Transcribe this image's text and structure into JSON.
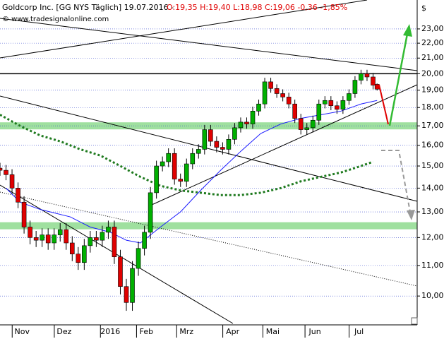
{
  "chart_data": {
    "type": "candlestick",
    "title": "Goldcorp Inc. [GG NYS  Täglich] 19.07.2016 -",
    "subtitle": "O:19,35 H:19,40 L:18,98 C:19,06 -0,36 -1,85%",
    "watermark": "© www.tradesignalonline.com",
    "y_axis_label": "$",
    "log_scale": true,
    "grid": true,
    "xlim": [
      0,
      208
    ],
    "ylim": [
      9.18,
      25.17
    ],
    "xticks": [
      {
        "value": 11,
        "label": "Nov"
      },
      {
        "value": 32,
        "label": "Dez"
      },
      {
        "value": 55,
        "label": "2016"
      },
      {
        "value": 73,
        "label": "Feb"
      },
      {
        "value": 93,
        "label": "Mrz"
      },
      {
        "value": 116,
        "label": "Apr"
      },
      {
        "value": 136,
        "label": "Mai"
      },
      {
        "value": 157,
        "label": "Jun"
      },
      {
        "value": 179,
        "label": "Jul"
      }
    ],
    "yticks": [
      {
        "value": 10,
        "label": "10,00"
      },
      {
        "value": 11,
        "label": "11,00"
      },
      {
        "value": 12,
        "label": "12,00"
      },
      {
        "value": 13,
        "label": "13,00"
      },
      {
        "value": 14,
        "label": "14,00"
      },
      {
        "value": 15,
        "label": "15,00"
      },
      {
        "value": 16,
        "label": "16,00"
      },
      {
        "value": 17,
        "label": "17,00"
      },
      {
        "value": 18,
        "label": "18,00"
      },
      {
        "value": 19,
        "label": "19,00"
      },
      {
        "value": 20,
        "label": "20,00"
      },
      {
        "value": 21,
        "label": "21,00"
      },
      {
        "value": 22,
        "label": "22,00"
      },
      {
        "value": 23,
        "label": "23,00"
      }
    ],
    "up_color": "#00b000",
    "down_color": "#e00000",
    "x": [
      0,
      3,
      6,
      9,
      12,
      15,
      18,
      21,
      24,
      27,
      30,
      33,
      36,
      39,
      42,
      45,
      48,
      51,
      54,
      57,
      60,
      63,
      66,
      69,
      72,
      75,
      78,
      81,
      84,
      87,
      90,
      93,
      96,
      99,
      102,
      105,
      108,
      111,
      114,
      117,
      120,
      123,
      126,
      129,
      132,
      135,
      138,
      141,
      144,
      147,
      150,
      153,
      156,
      159,
      162,
      165,
      168,
      171,
      174,
      177,
      180,
      183,
      186,
      188
    ],
    "open": [
      14.9,
      14.8,
      14.6,
      14.0,
      13.4,
      12.4,
      12.0,
      11.9,
      12.1,
      11.8,
      12.1,
      12.3,
      11.8,
      11.4,
      11.1,
      11.7,
      12.0,
      11.9,
      12.2,
      12.4,
      11.3,
      10.3,
      9.8,
      10.9,
      11.6,
      12.2,
      13.8,
      15.0,
      15.2,
      15.6,
      14.4,
      14.3,
      15.1,
      15.6,
      15.8,
      16.8,
      16.2,
      15.9,
      15.8,
      16.3,
      16.9,
      17.2,
      17.1,
      17.8,
      18.2,
      19.5,
      19.1,
      18.8,
      18.6,
      18.2,
      17.4,
      16.8,
      16.9,
      17.3,
      18.2,
      18.4,
      18.1,
      17.9,
      18.4,
      18.8,
      19.6,
      20.0,
      19.8,
      19.35
    ],
    "high": [
      15.15,
      15.05,
      14.85,
      14.25,
      13.65,
      12.65,
      12.25,
      12.35,
      12.35,
      12.35,
      12.55,
      12.55,
      12.05,
      11.65,
      11.95,
      12.25,
      12.25,
      12.45,
      12.65,
      12.65,
      11.55,
      10.55,
      11.15,
      11.85,
      12.45,
      14.05,
      15.25,
      15.45,
      15.85,
      15.85,
      14.65,
      15.35,
      15.85,
      16.05,
      17.05,
      17.05,
      16.45,
      16.15,
      16.55,
      17.15,
      17.45,
      17.45,
      18.05,
      18.45,
      19.75,
      19.75,
      19.35,
      19.05,
      18.85,
      18.45,
      17.65,
      17.15,
      17.55,
      18.45,
      18.65,
      18.65,
      18.35,
      18.65,
      19.05,
      19.85,
      20.25,
      20.25,
      20.05,
      19.4
    ],
    "low": [
      14.55,
      14.35,
      13.75,
      13.15,
      12.15,
      11.75,
      11.65,
      11.65,
      11.55,
      11.55,
      11.85,
      11.55,
      11.15,
      10.85,
      10.85,
      11.45,
      11.65,
      11.65,
      11.95,
      11.05,
      10.05,
      9.55,
      9.55,
      10.65,
      11.35,
      11.95,
      13.55,
      14.75,
      14.95,
      14.15,
      14.05,
      14.05,
      14.85,
      15.35,
      15.55,
      15.95,
      15.65,
      15.55,
      15.55,
      16.05,
      16.65,
      16.85,
      16.85,
      17.55,
      17.95,
      18.85,
      18.55,
      18.35,
      17.95,
      17.15,
      16.55,
      16.55,
      16.65,
      17.05,
      17.95,
      17.85,
      17.65,
      17.65,
      18.15,
      18.55,
      19.35,
      19.55,
      19.05,
      18.98
    ],
    "close": [
      14.8,
      14.6,
      14.0,
      13.4,
      12.4,
      12.0,
      11.9,
      12.1,
      11.8,
      12.1,
      12.3,
      11.8,
      11.4,
      11.1,
      11.7,
      12.0,
      11.9,
      12.2,
      12.4,
      11.3,
      10.3,
      9.8,
      10.9,
      11.6,
      12.2,
      13.8,
      15.0,
      15.2,
      15.6,
      14.4,
      14.3,
      15.1,
      15.6,
      15.8,
      16.8,
      16.2,
      15.9,
      15.8,
      16.3,
      16.9,
      17.2,
      17.1,
      17.8,
      18.2,
      19.5,
      19.1,
      18.8,
      18.6,
      18.2,
      17.4,
      16.8,
      16.9,
      17.3,
      18.2,
      18.4,
      18.1,
      17.9,
      18.4,
      18.8,
      19.6,
      20.0,
      19.8,
      19.3,
      19.06
    ],
    "lines": [
      {
        "color": "#1a1aff",
        "style": "solid",
        "x": [
          3,
          10,
          20,
          35,
          45,
          55,
          63,
          70,
          80,
          90,
          100,
          110,
          120,
          130,
          140,
          150,
          160,
          170,
          180,
          188
        ],
        "values": [
          14.0,
          13.4,
          13.1,
          12.8,
          12.4,
          12.2,
          11.9,
          11.8,
          12.4,
          13.0,
          13.9,
          14.8,
          15.7,
          16.6,
          17.1,
          17.4,
          17.6,
          17.8,
          18.2,
          18.4
        ]
      },
      {
        "color": "#1f7a1f",
        "style": "dotted",
        "x": [
          0,
          10,
          20,
          30,
          40,
          50,
          60,
          70,
          80,
          90,
          100,
          110,
          120,
          130,
          140,
          150,
          160,
          170,
          180,
          186
        ],
        "values": [
          17.6,
          17.0,
          16.5,
          16.2,
          15.8,
          15.5,
          15.0,
          14.5,
          14.1,
          13.9,
          13.8,
          13.7,
          13.7,
          13.8,
          14.0,
          14.3,
          14.5,
          14.7,
          15.0,
          15.2
        ]
      }
    ],
    "zones": [
      17.0,
      12.45
    ],
    "zone_color": "#9fe09f",
    "hlines": [
      20.0
    ]
  }
}
